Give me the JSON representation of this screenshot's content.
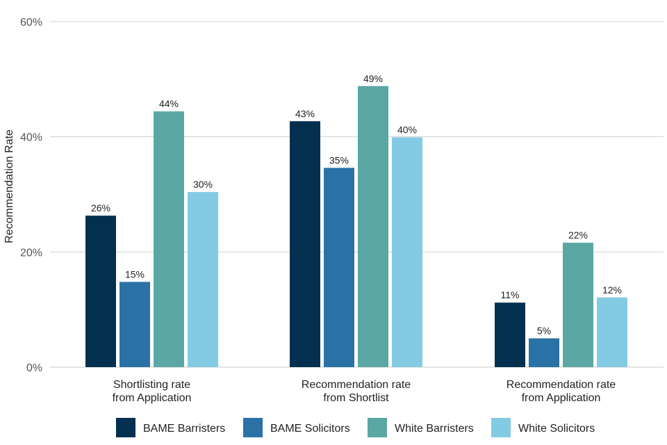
{
  "chart_data": {
    "type": "bar",
    "title": "",
    "xlabel": "",
    "ylabel": "Recommendation Rate",
    "ylim": [
      0,
      60
    ],
    "yticks": [
      0,
      20,
      40,
      60
    ],
    "ytick_labels": [
      "0%",
      "20%",
      "40%",
      "60%"
    ],
    "grid": true,
    "legend_position": "bottom",
    "categories": [
      [
        "Shortlisting rate",
        "from Application"
      ],
      [
        "Recommendation rate",
        "from Shortlist"
      ],
      [
        "Recommendation rate",
        "from Application"
      ]
    ],
    "series": [
      {
        "name": "BAME Barristers",
        "color": "#04304f",
        "values": [
          26.3,
          42.7,
          11.2
        ],
        "labels": [
          "26%",
          "43%",
          "11%"
        ]
      },
      {
        "name": "BAME Solicitors",
        "color": "#2a72a5",
        "values": [
          14.8,
          34.6,
          5.0
        ],
        "labels": [
          "15%",
          "35%",
          "5%"
        ]
      },
      {
        "name": "White Barristers",
        "color": "#5aa7a4",
        "values": [
          44.4,
          48.8,
          21.6
        ],
        "labels": [
          "44%",
          "49%",
          "22%"
        ]
      },
      {
        "name": "White Solicitors",
        "color": "#83cbe3",
        "values": [
          30.4,
          39.9,
          12.1
        ],
        "labels": [
          "30%",
          "40%",
          "12%"
        ]
      }
    ]
  }
}
